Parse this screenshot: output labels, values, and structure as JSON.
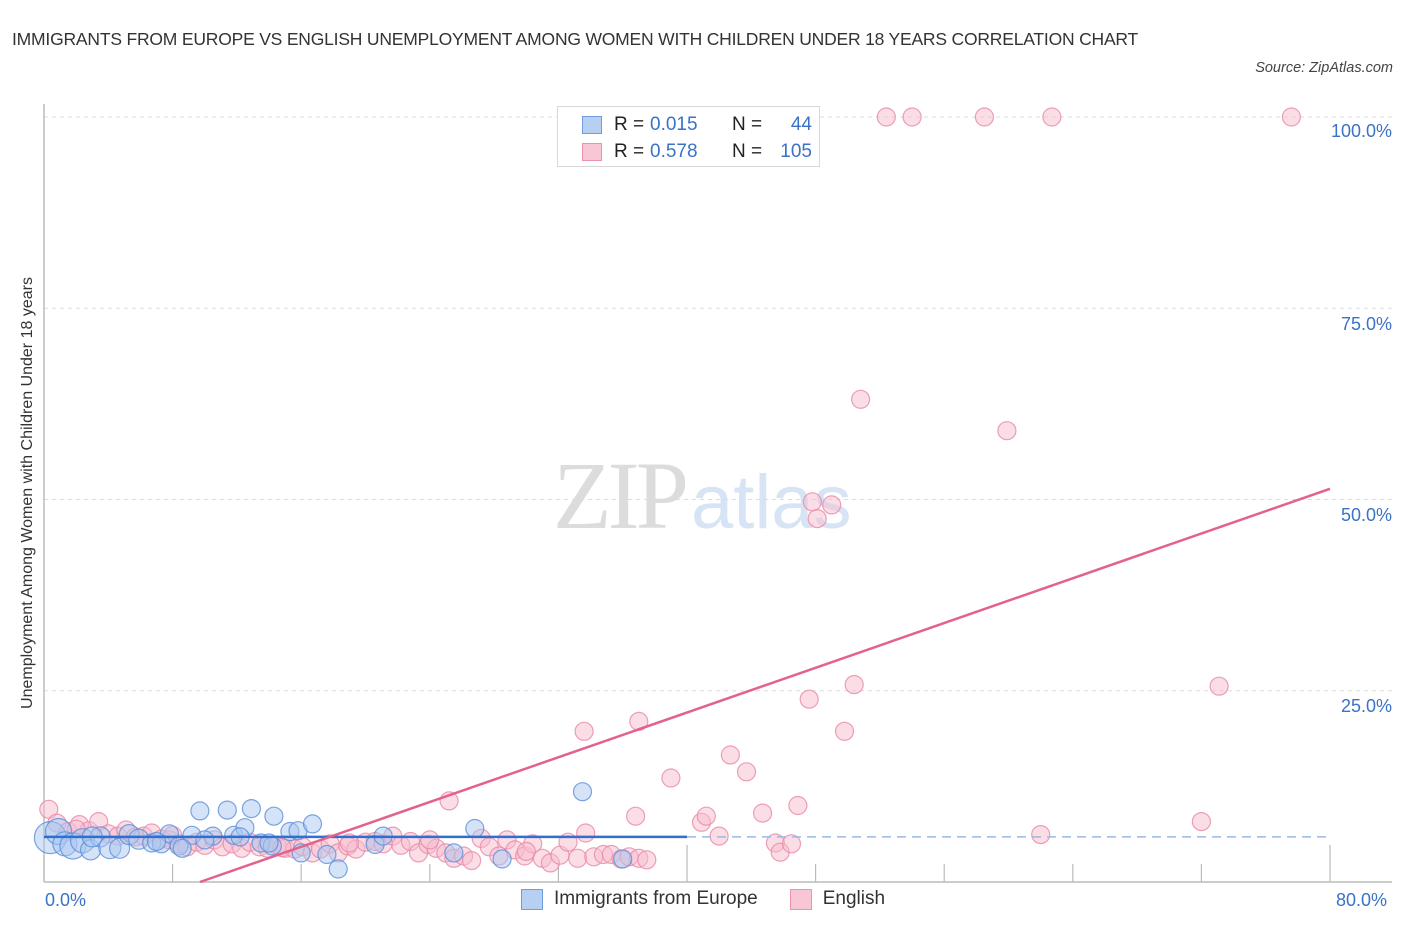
{
  "header": {
    "title": "IMMIGRANTS FROM EUROPE VS ENGLISH UNEMPLOYMENT AMONG WOMEN WITH CHILDREN UNDER 18 YEARS CORRELATION CHART",
    "source": "Source: ZipAtlas.com"
  },
  "watermark": {
    "zip": "ZIP",
    "atlas": "atlas"
  },
  "axes": {
    "ylabel": "Unemployment Among Women with Children Under 18 years",
    "x_min_label": "0.0%",
    "x_max_label": "80.0%",
    "y_ticks": [
      "100.0%",
      "75.0%",
      "50.0%",
      "25.0%"
    ]
  },
  "stats": {
    "rows": [
      {
        "series": "Immigrants from Europe",
        "r_label": "R =",
        "r": "0.015",
        "n_label": "N =",
        "n": "44"
      },
      {
        "series": "English",
        "r_label": "R =",
        "r": "0.578",
        "n_label": "N =",
        "n": "105"
      }
    ]
  },
  "legend": {
    "items": [
      {
        "label": "Immigrants from Europe"
      },
      {
        "label": "English"
      }
    ]
  },
  "colors": {
    "blue_fill": "#a9c8f0",
    "blue_stroke": "#5b8fd9",
    "blue_line": "#2f6fd0",
    "pink_fill": "#f7bccd",
    "pink_stroke": "#e888a6",
    "pink_line": "#e3628c",
    "grid": "#dddddd",
    "axis": "#bbbbbb",
    "tick_text": "#3a72c8"
  },
  "chart_data": {
    "type": "scatter",
    "title": "IMMIGRANTS FROM EUROPE VS ENGLISH UNEMPLOYMENT AMONG WOMEN WITH CHILDREN UNDER 18 YEARS CORRELATION CHART",
    "xlabel": "",
    "ylabel": "Unemployment Among Women with Children Under 18 years",
    "xlim": [
      0,
      80
    ],
    "ylim": [
      0,
      100
    ],
    "x_ticks": [
      0,
      8,
      16,
      24,
      32,
      40,
      48,
      56,
      64,
      72,
      80
    ],
    "y_gridlines": [
      25,
      50,
      75,
      100
    ],
    "grid": true,
    "legend_position": "bottom",
    "series": [
      {
        "name": "Immigrants from Europe",
        "R": 0.015,
        "N": 44,
        "trend": {
          "x": [
            0,
            40
          ],
          "y": [
            5.9,
            5.9
          ],
          "extended_dashed_to_x": 80
        },
        "points": [
          [
            0.4,
            5.8,
            16
          ],
          [
            0.9,
            6.6,
            13
          ],
          [
            1.3,
            5.0,
            12
          ],
          [
            1.8,
            4.7,
            13
          ],
          [
            2.4,
            5.4,
            12
          ],
          [
            2.9,
            4.2,
            10
          ],
          [
            3.5,
            5.9,
            10
          ],
          [
            4.1,
            4.5,
            11
          ],
          [
            4.7,
            4.4,
            10
          ],
          [
            5.3,
            6.2,
            10
          ],
          [
            5.9,
            5.6,
            10
          ],
          [
            6.7,
            5.1,
            9
          ],
          [
            7.3,
            5.0,
            9
          ],
          [
            7.8,
            6.3,
            9
          ],
          [
            8.4,
            4.7,
            9
          ],
          [
            9.2,
            6.1,
            9
          ],
          [
            8.6,
            4.4,
            9
          ],
          [
            9.7,
            9.3,
            9
          ],
          [
            10.5,
            6.0,
            9
          ],
          [
            11.4,
            9.4,
            9
          ],
          [
            11.8,
            6.1,
            9
          ],
          [
            12.5,
            7.1,
            9
          ],
          [
            12.2,
            5.9,
            9
          ],
          [
            12.9,
            9.6,
            9
          ],
          [
            13.5,
            5.1,
            9
          ],
          [
            14.2,
            4.7,
            9
          ],
          [
            14.3,
            8.6,
            9
          ],
          [
            15.3,
            6.6,
            9
          ],
          [
            15.8,
            6.7,
            9
          ],
          [
            16.7,
            7.6,
            9
          ],
          [
            16.0,
            3.8,
            9
          ],
          [
            17.6,
            3.6,
            9
          ],
          [
            18.3,
            1.7,
            9
          ],
          [
            20.6,
            4.9,
            9
          ],
          [
            21.1,
            6.0,
            9
          ],
          [
            25.5,
            3.8,
            9
          ],
          [
            26.8,
            7.0,
            9
          ],
          [
            28.5,
            3.0,
            9
          ],
          [
            33.5,
            11.8,
            9
          ],
          [
            36.0,
            3.0,
            9
          ],
          [
            14.0,
            5.1,
            9
          ],
          [
            7.0,
            5.3,
            9
          ],
          [
            3.0,
            5.9,
            10
          ],
          [
            10.0,
            5.5,
            9
          ]
        ]
      },
      {
        "name": "English",
        "R": 0.578,
        "N": 105,
        "trend": {
          "x": [
            9.7,
            80
          ],
          "y": [
            0,
            51.4
          ]
        },
        "points": [
          [
            0.3,
            9.5,
            9
          ],
          [
            0.8,
            7.7,
            9
          ],
          [
            1.5,
            6.6,
            9
          ],
          [
            2.2,
            7.5,
            9
          ],
          [
            2.8,
            6.7,
            9
          ],
          [
            3.4,
            7.9,
            9
          ],
          [
            4.0,
            6.3,
            9
          ],
          [
            4.6,
            6.0,
            9
          ],
          [
            5.1,
            6.8,
            9
          ],
          [
            5.7,
            5.9,
            9
          ],
          [
            6.2,
            6.0,
            9
          ],
          [
            6.7,
            6.4,
            9
          ],
          [
            7.3,
            5.6,
            9
          ],
          [
            7.8,
            5.5,
            9
          ],
          [
            8.4,
            5.0,
            9
          ],
          [
            8.9,
            4.6,
            9
          ],
          [
            9.5,
            5.2,
            9
          ],
          [
            10.0,
            4.8,
            9
          ],
          [
            10.6,
            5.5,
            9
          ],
          [
            11.1,
            4.6,
            9
          ],
          [
            11.7,
            5.0,
            9
          ],
          [
            12.3,
            4.4,
            9
          ],
          [
            12.8,
            5.2,
            9
          ],
          [
            13.4,
            4.6,
            9
          ],
          [
            13.9,
            4.4,
            9
          ],
          [
            14.5,
            4.8,
            9
          ],
          [
            15.0,
            4.4,
            9
          ],
          [
            15.6,
            4.3,
            9
          ],
          [
            16.1,
            4.6,
            9
          ],
          [
            16.7,
            3.8,
            9
          ],
          [
            17.2,
            4.3,
            9
          ],
          [
            17.8,
            5.0,
            9
          ],
          [
            18.3,
            3.8,
            9
          ],
          [
            18.9,
            4.7,
            9
          ],
          [
            19.4,
            4.3,
            9
          ],
          [
            20.0,
            5.2,
            9
          ],
          [
            20.6,
            5.3,
            9
          ],
          [
            21.1,
            5.0,
            9
          ],
          [
            21.7,
            6.0,
            9
          ],
          [
            22.2,
            4.8,
            9
          ],
          [
            22.8,
            5.3,
            9
          ],
          [
            23.3,
            3.8,
            9
          ],
          [
            23.9,
            4.9,
            9
          ],
          [
            24.4,
            4.4,
            9
          ],
          [
            25.0,
            3.8,
            9
          ],
          [
            25.5,
            3.1,
            9
          ],
          [
            26.1,
            3.4,
            9
          ],
          [
            26.6,
            2.8,
            9
          ],
          [
            27.2,
            5.7,
            9
          ],
          [
            27.7,
            4.6,
            9
          ],
          [
            28.3,
            3.4,
            9
          ],
          [
            28.8,
            5.5,
            9
          ],
          [
            29.3,
            4.2,
            9
          ],
          [
            29.9,
            3.4,
            9
          ],
          [
            30.4,
            5.0,
            9
          ],
          [
            31.0,
            3.1,
            9
          ],
          [
            31.5,
            2.5,
            9
          ],
          [
            32.1,
            3.5,
            9
          ],
          [
            32.6,
            5.2,
            9
          ],
          [
            33.2,
            3.1,
            9
          ],
          [
            33.7,
            6.4,
            9
          ],
          [
            34.2,
            3.3,
            9
          ],
          [
            34.8,
            3.6,
            9
          ],
          [
            35.3,
            3.6,
            9
          ],
          [
            35.9,
            3.0,
            9
          ],
          [
            36.4,
            3.3,
            9
          ],
          [
            37.0,
            3.1,
            9
          ],
          [
            37.5,
            2.9,
            9
          ],
          [
            25.2,
            10.6,
            9
          ],
          [
            33.6,
            19.7,
            9
          ],
          [
            37.0,
            21.0,
            9
          ],
          [
            36.8,
            8.6,
            9
          ],
          [
            39.0,
            13.6,
            9
          ],
          [
            40.9,
            7.8,
            9
          ],
          [
            41.2,
            8.6,
            9
          ],
          [
            42.0,
            6.0,
            9
          ],
          [
            42.7,
            16.6,
            9
          ],
          [
            43.7,
            14.4,
            9
          ],
          [
            44.7,
            9.0,
            9
          ],
          [
            45.5,
            5.1,
            9
          ],
          [
            45.8,
            3.9,
            9
          ],
          [
            46.5,
            5.0,
            9
          ],
          [
            46.9,
            10.0,
            9
          ],
          [
            47.6,
            23.9,
            9
          ],
          [
            49.8,
            19.7,
            9
          ],
          [
            50.4,
            25.8,
            9
          ],
          [
            50.8,
            63.1,
            9
          ],
          [
            47.8,
            49.7,
            9
          ],
          [
            48.1,
            47.5,
            9
          ],
          [
            49.0,
            49.3,
            9
          ],
          [
            59.9,
            59.0,
            9
          ],
          [
            62.0,
            6.2,
            9
          ],
          [
            72.0,
            7.9,
            9
          ],
          [
            73.1,
            25.6,
            9
          ],
          [
            52.4,
            100,
            9
          ],
          [
            54.0,
            100,
            9
          ],
          [
            58.5,
            100,
            9
          ],
          [
            62.7,
            100,
            9
          ],
          [
            77.6,
            100,
            9
          ],
          [
            14.8,
            4.5,
            9
          ],
          [
            19.0,
            5.1,
            9
          ],
          [
            24.0,
            5.5,
            9
          ],
          [
            30.0,
            4.0,
            9
          ],
          [
            8.0,
            6.1,
            9
          ],
          [
            2.0,
            6.9,
            9
          ]
        ]
      }
    ]
  }
}
